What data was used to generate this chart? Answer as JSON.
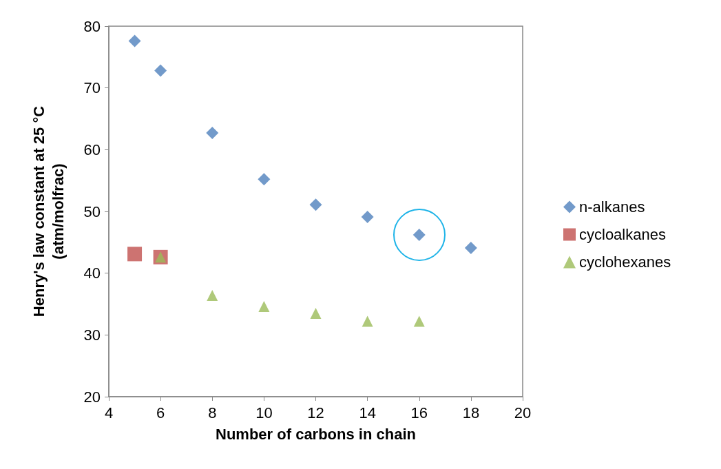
{
  "chart_data": {
    "type": "scatter",
    "xlabel": "Number of carbons in chain",
    "ylabel": "Henry's law constant at 25 °C\n(atm/molfrac)",
    "xlim": [
      4,
      20
    ],
    "xticks": [
      4,
      6,
      8,
      10,
      12,
      14,
      16,
      18,
      20
    ],
    "ylim": [
      20,
      80
    ],
    "yticks": [
      20,
      30,
      40,
      50,
      60,
      70,
      80
    ],
    "grid": false,
    "legend": "right",
    "series": [
      {
        "name": "n-alkanes",
        "color": "#4f81bd",
        "marker": "diamond",
        "x": [
          5,
          6,
          8,
          10,
          12,
          14,
          16,
          18
        ],
        "values": [
          77.6,
          72.8,
          62.7,
          55.2,
          51.1,
          49.1,
          46.2,
          44.1
        ]
      },
      {
        "name": "cycloalkanes",
        "color": "#c0504d",
        "marker": "square",
        "x": [
          5,
          6
        ],
        "values": [
          43.1,
          42.6
        ]
      },
      {
        "name": "cyclohexanes",
        "color": "#9bbb59",
        "marker": "triangle",
        "x": [
          6,
          8,
          10,
          12,
          14,
          16
        ],
        "values": [
          42.6,
          36.4,
          34.6,
          33.5,
          32.2,
          32.2
        ]
      }
    ]
  }
}
